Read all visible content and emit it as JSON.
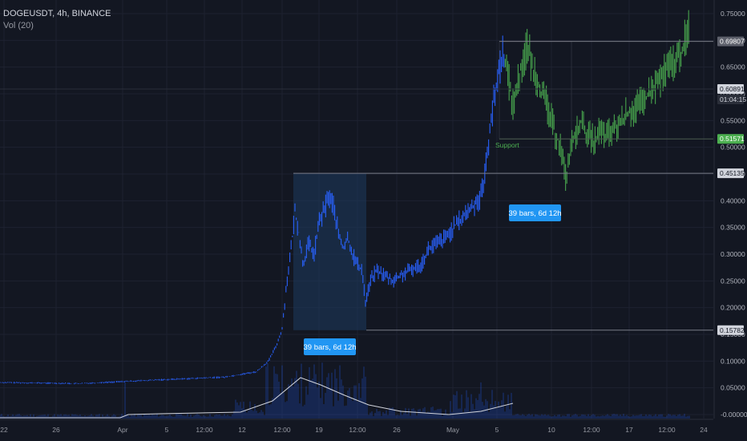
{
  "header": {
    "symbol_line": "DOGEUSDT, 4h, BINANCE",
    "indicator_line": "Vol (20)"
  },
  "colors": {
    "background": "#131722",
    "bar_blue": "#2962ff",
    "bar_green": "#4caf50",
    "range_fill": "#1e3a5f",
    "callout_bg": "#2196f3",
    "grid": "#1e2230"
  },
  "chart_data": {
    "type": "bar",
    "title": "",
    "y_ticks": [
      "0.75000",
      "0.70000",
      "0.65000",
      "0.60000",
      "0.55000",
      "0.50000",
      "0.45000",
      "0.40000",
      "0.35000",
      "0.30000",
      "0.25000",
      "0.20000",
      "0.15000",
      "0.10000",
      "0.05000",
      "0.00000"
    ],
    "x_ticks": [
      "22",
      "26",
      "Apr",
      "5",
      "12:00",
      "12",
      "12:00",
      "19",
      "12:00",
      "26",
      "May",
      "5",
      "10",
      "12:00",
      "17",
      "12:00",
      "24"
    ],
    "price_tags": [
      {
        "value": "0.69807",
        "style": "gray"
      },
      {
        "value": "0.60891",
        "style": "light"
      },
      {
        "value": "01:04:15",
        "style": "dark"
      },
      {
        "value": "0.51571",
        "style": "green"
      },
      {
        "value": "0.45135",
        "style": "light"
      },
      {
        "value": "0.15782",
        "style": "light"
      }
    ],
    "annotations": {
      "callout_1": "39 bars, 6d 12h",
      "callout_2": "39 bars, 6d 12h",
      "support_label": "Support"
    },
    "key_levels": {
      "range1_high": 0.45135,
      "range1_low": 0.15782,
      "range2_high": 0.69807,
      "support": 0.51571,
      "mid_level": 0.60891
    },
    "price_path": [
      [
        0,
        0.06
      ],
      [
        100,
        0.058
      ],
      [
        157,
        0.062
      ],
      [
        200,
        0.065
      ],
      [
        280,
        0.07
      ],
      [
        320,
        0.08
      ],
      [
        335,
        0.1
      ],
      [
        345,
        0.13
      ],
      [
        352,
        0.16
      ],
      [
        358,
        0.25
      ],
      [
        364,
        0.32
      ],
      [
        368,
        0.38
      ],
      [
        372,
        0.35
      ],
      [
        378,
        0.28
      ],
      [
        385,
        0.32
      ],
      [
        392,
        0.3
      ],
      [
        398,
        0.36
      ],
      [
        404,
        0.38
      ],
      [
        410,
        0.41
      ],
      [
        416,
        0.39
      ],
      [
        422,
        0.34
      ],
      [
        428,
        0.31
      ],
      [
        434,
        0.33
      ],
      [
        440,
        0.3
      ],
      [
        446,
        0.28
      ],
      [
        452,
        0.27
      ],
      [
        456,
        0.21
      ],
      [
        462,
        0.25
      ],
      [
        470,
        0.27
      ],
      [
        480,
        0.26
      ],
      [
        490,
        0.25
      ],
      [
        500,
        0.26
      ],
      [
        512,
        0.27
      ],
      [
        525,
        0.28
      ],
      [
        535,
        0.31
      ],
      [
        545,
        0.32
      ],
      [
        556,
        0.33
      ],
      [
        566,
        0.35
      ],
      [
        578,
        0.37
      ],
      [
        590,
        0.39
      ],
      [
        600,
        0.41
      ],
      [
        607,
        0.47
      ],
      [
        612,
        0.55
      ],
      [
        618,
        0.6
      ],
      [
        623,
        0.65
      ],
      [
        628,
        0.68
      ],
      [
        634,
        0.63
      ],
      [
        640,
        0.58
      ],
      [
        646,
        0.62
      ],
      [
        652,
        0.66
      ],
      [
        658,
        0.69
      ],
      [
        664,
        0.65
      ],
      [
        670,
        0.63
      ],
      [
        676,
        0.6
      ],
      [
        682,
        0.58
      ],
      [
        688,
        0.55
      ],
      [
        694,
        0.52
      ],
      [
        700,
        0.5
      ],
      [
        706,
        0.44
      ],
      [
        712,
        0.5
      ],
      [
        718,
        0.52
      ],
      [
        724,
        0.55
      ],
      [
        730,
        0.53
      ],
      [
        736,
        0.52
      ],
      [
        742,
        0.51
      ],
      [
        748,
        0.53
      ],
      [
        756,
        0.52
      ],
      [
        764,
        0.53
      ],
      [
        772,
        0.54
      ],
      [
        780,
        0.56
      ],
      [
        790,
        0.57
      ],
      [
        800,
        0.58
      ],
      [
        810,
        0.6
      ],
      [
        820,
        0.62
      ],
      [
        830,
        0.64
      ],
      [
        840,
        0.66
      ],
      [
        848,
        0.67
      ],
      [
        855,
        0.7
      ],
      [
        860,
        0.72
      ]
    ]
  }
}
